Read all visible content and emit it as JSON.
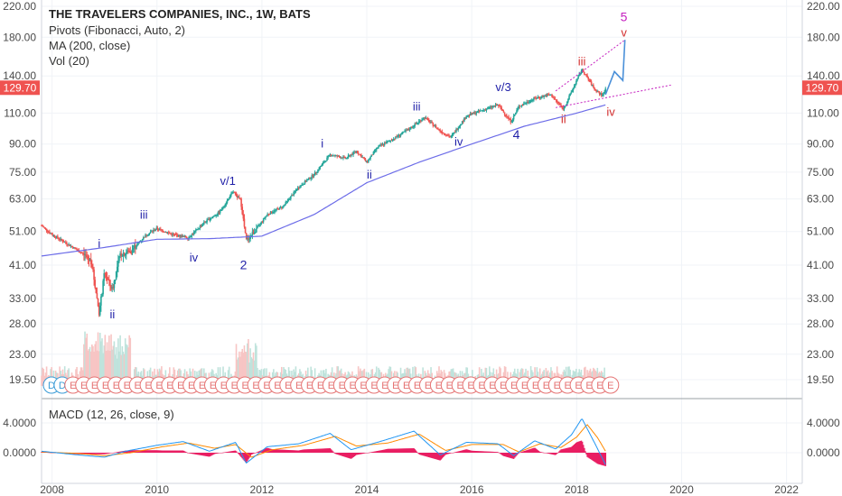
{
  "legend": {
    "title": "THE TRAVELERS COMPANIES, INC., 1W, BATS",
    "pivots": "Pivots (Fibonacci, Auto, 2)",
    "ma": "MA (200, close)",
    "vol": "Vol (20)",
    "macd": "MACD (12, 26, close, 9)"
  },
  "current_price": "129.70",
  "colors": {
    "up": "#26a69a",
    "down": "#ef5350",
    "ma": "#6c6ce8",
    "wave_blue": "#1f1fa8",
    "wave_red": "#d32f2f",
    "wave_magenta": "#c51fbf",
    "price_tag": "#ef5350",
    "macd_line": "#2196f3",
    "signal_line": "#ff8a00",
    "hist": "#e91e63"
  },
  "chart_data": {
    "type": "line",
    "title": "THE TRAVELERS COMPANIES, INC., 1W, BATS",
    "price_axis": {
      "scale": "log",
      "ticks": [
        "220.00",
        "180.00",
        "140.00",
        "110.00",
        "90.00",
        "75.00",
        "63.00",
        "51.00",
        "41.00",
        "33.00",
        "28.00",
        "23.00",
        "19.50"
      ]
    },
    "time_axis": {
      "ticks": [
        "2008",
        "2010",
        "2012",
        "2014",
        "2016",
        "2018",
        "2020",
        "2022"
      ],
      "range": [
        2007.8,
        2022.3
      ]
    },
    "macd_axis": {
      "ticks": [
        "4.0000",
        "0.0000"
      ],
      "range": [
        -2.5,
        6
      ]
    },
    "series": [
      {
        "name": "Price",
        "points": [
          [
            2007.8,
            53
          ],
          [
            2008.0,
            50
          ],
          [
            2008.2,
            48
          ],
          [
            2008.4,
            46
          ],
          [
            2008.6,
            44
          ],
          [
            2008.75,
            42
          ],
          [
            2008.9,
            30
          ],
          [
            2009.0,
            39
          ],
          [
            2009.15,
            35
          ],
          [
            2009.3,
            44
          ],
          [
            2009.5,
            45
          ],
          [
            2009.8,
            50
          ],
          [
            2010.0,
            52
          ],
          [
            2010.3,
            50
          ],
          [
            2010.6,
            49
          ],
          [
            2010.9,
            54
          ],
          [
            2011.2,
            58
          ],
          [
            2011.45,
            66
          ],
          [
            2011.6,
            62
          ],
          [
            2011.7,
            48
          ],
          [
            2011.9,
            52
          ],
          [
            2012.1,
            57
          ],
          [
            2012.4,
            60
          ],
          [
            2012.7,
            68
          ],
          [
            2013.0,
            74
          ],
          [
            2013.3,
            84
          ],
          [
            2013.6,
            82
          ],
          [
            2013.8,
            86
          ],
          [
            2014.0,
            80
          ],
          [
            2014.2,
            88
          ],
          [
            2014.5,
            93
          ],
          [
            2014.8,
            99
          ],
          [
            2015.1,
            107
          ],
          [
            2015.4,
            98
          ],
          [
            2015.6,
            94
          ],
          [
            2015.9,
            108
          ],
          [
            2016.2,
            112
          ],
          [
            2016.5,
            116
          ],
          [
            2016.75,
            104
          ],
          [
            2016.9,
            115
          ],
          [
            2017.2,
            121
          ],
          [
            2017.5,
            124
          ],
          [
            2017.75,
            113
          ],
          [
            2018.0,
            136
          ],
          [
            2018.1,
            146
          ],
          [
            2018.35,
            128
          ],
          [
            2018.5,
            123
          ],
          [
            2018.55,
            129.7
          ]
        ]
      },
      {
        "name": "MA (200, close)",
        "points": [
          [
            2007.8,
            43.5
          ],
          [
            2009.0,
            46
          ],
          [
            2010.0,
            48.5
          ],
          [
            2011.0,
            48.7
          ],
          [
            2012.0,
            49.5
          ],
          [
            2013.0,
            57
          ],
          [
            2014.0,
            70
          ],
          [
            2015.0,
            80
          ],
          [
            2016.0,
            90
          ],
          [
            2017.0,
            101
          ],
          [
            2018.0,
            110
          ],
          [
            2018.55,
            116
          ]
        ]
      },
      {
        "name": "Projection",
        "points": [
          [
            2018.55,
            124
          ],
          [
            2018.72,
            144
          ],
          [
            2018.88,
            136
          ],
          [
            2018.92,
            177
          ]
        ]
      }
    ],
    "macd": {
      "macd_line": [
        [
          2007.8,
          0.2
        ],
        [
          2008.5,
          -0.3
        ],
        [
          2009.0,
          -0.6
        ],
        [
          2009.4,
          0.2
        ],
        [
          2010.0,
          1.0
        ],
        [
          2010.5,
          1.5
        ],
        [
          2011.0,
          0.2
        ],
        [
          2011.5,
          1.4
        ],
        [
          2011.7,
          -1.4
        ],
        [
          2012.1,
          0.8
        ],
        [
          2012.7,
          1.2
        ],
        [
          2013.3,
          2.6
        ],
        [
          2013.7,
          0.4
        ],
        [
          2014.3,
          1.6
        ],
        [
          2014.9,
          2.9
        ],
        [
          2015.4,
          -0.3
        ],
        [
          2015.9,
          1.4
        ],
        [
          2016.5,
          1.2
        ],
        [
          2016.8,
          -0.4
        ],
        [
          2017.2,
          1.6
        ],
        [
          2017.6,
          0.5
        ],
        [
          2017.9,
          2.4
        ],
        [
          2018.1,
          4.6
        ],
        [
          2018.35,
          1.2
        ],
        [
          2018.55,
          -1.6
        ]
      ],
      "signal_line": [
        [
          2007.8,
          0.1
        ],
        [
          2008.5,
          -0.1
        ],
        [
          2009.0,
          -0.4
        ],
        [
          2009.5,
          0.0
        ],
        [
          2010.1,
          0.8
        ],
        [
          2010.6,
          1.3
        ],
        [
          2011.1,
          0.6
        ],
        [
          2011.5,
          1.1
        ],
        [
          2011.8,
          -0.6
        ],
        [
          2012.2,
          0.4
        ],
        [
          2012.8,
          1.0
        ],
        [
          2013.4,
          2.2
        ],
        [
          2013.8,
          0.9
        ],
        [
          2014.4,
          1.3
        ],
        [
          2015.0,
          2.5
        ],
        [
          2015.5,
          0.3
        ],
        [
          2016.0,
          1.1
        ],
        [
          2016.6,
          1.1
        ],
        [
          2016.9,
          0.1
        ],
        [
          2017.3,
          1.2
        ],
        [
          2017.7,
          0.7
        ],
        [
          2018.0,
          2.1
        ],
        [
          2018.2,
          3.8
        ],
        [
          2018.4,
          2.0
        ],
        [
          2018.55,
          0.2
        ]
      ]
    }
  },
  "labels": [
    {
      "text": "i",
      "x": 2008.9,
      "y": 46,
      "c": "wave_blue"
    },
    {
      "text": "ii",
      "x": 2009.15,
      "y": 29,
      "c": "wave_blue"
    },
    {
      "text": "iii",
      "x": 2009.75,
      "y": 55.5,
      "c": "wave_blue"
    },
    {
      "text": "iv",
      "x": 2010.7,
      "y": 42,
      "c": "wave_blue"
    },
    {
      "text": "v/1",
      "x": 2011.35,
      "y": 69,
      "c": "wave_blue"
    },
    {
      "text": "2",
      "x": 2011.65,
      "y": 40,
      "c": "wave_blue"
    },
    {
      "text": "i",
      "x": 2013.15,
      "y": 88,
      "c": "wave_blue"
    },
    {
      "text": "ii",
      "x": 2014.05,
      "y": 72,
      "c": "wave_blue"
    },
    {
      "text": "iii",
      "x": 2014.95,
      "y": 112,
      "c": "wave_blue"
    },
    {
      "text": "iv",
      "x": 2015.75,
      "y": 89,
      "c": "wave_blue"
    },
    {
      "text": "v/3",
      "x": 2016.6,
      "y": 127,
      "c": "wave_blue"
    },
    {
      "text": "4",
      "x": 2016.85,
      "y": 93,
      "c": "wave_blue"
    },
    {
      "text": "ii",
      "x": 2017.75,
      "y": 103,
      "c": "wave_red"
    },
    {
      "text": "iii",
      "x": 2018.1,
      "y": 150,
      "c": "wave_red"
    },
    {
      "text": "iv",
      "x": 2018.65,
      "y": 108,
      "c": "wave_red"
    },
    {
      "text": "v",
      "x": 2018.9,
      "y": 181,
      "c": "wave_red"
    },
    {
      "text": "5",
      "x": 2018.9,
      "y": 200,
      "c": "wave_magenta"
    }
  ],
  "earnings": [
    "D",
    "D",
    "E",
    "E",
    "E",
    "E",
    "E",
    "E",
    "E",
    "E",
    "E",
    "E",
    "E",
    "E",
    "E",
    "E",
    "E",
    "E",
    "E",
    "E",
    "E",
    "E",
    "E",
    "E",
    "E",
    "E",
    "E",
    "E",
    "E",
    "E",
    "E",
    "E",
    "E",
    "E",
    "E",
    "E",
    "E",
    "E",
    "E",
    "E",
    "E",
    "E",
    "E",
    "E",
    "E",
    "E",
    "E",
    "E",
    "E",
    "E",
    "E",
    "E",
    "E"
  ]
}
